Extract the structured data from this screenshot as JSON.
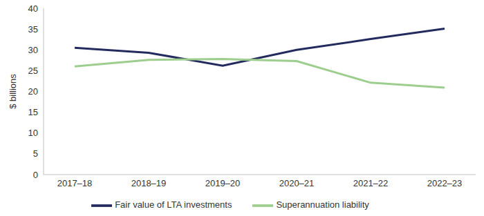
{
  "chart_data": {
    "type": "line",
    "y_label": "$ billions",
    "categories": [
      "2017–18",
      "2018–19",
      "2019–20",
      "2020–21",
      "2021–22",
      "2022–23"
    ],
    "series": [
      {
        "name": "Fair value of LTA investments",
        "color": "#232b5e",
        "values": [
          30.5,
          29.3,
          26.2,
          30.0,
          32.6,
          35.1
        ]
      },
      {
        "name": "Superannuation liability",
        "color": "#9dce8e",
        "values": [
          26.0,
          27.6,
          27.8,
          27.3,
          22.1,
          20.9
        ]
      }
    ],
    "ylim": [
      0,
      40
    ],
    "yticks": [
      0,
      5,
      10,
      15,
      20,
      25,
      30,
      35,
      40
    ],
    "grid": false,
    "legend": "bottom"
  }
}
